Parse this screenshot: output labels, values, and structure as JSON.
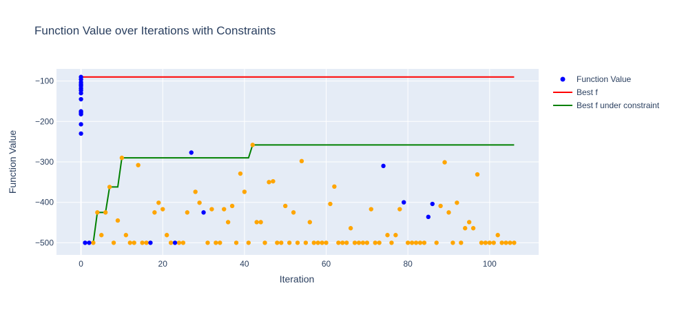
{
  "chart_data": {
    "type": "scatter",
    "title": "Function Value over Iterations with Constraints",
    "xlabel": "Iteration",
    "ylabel": "Function Value",
    "xlim": [
      -6,
      112
    ],
    "ylim": [
      -530,
      -70
    ],
    "x_ticks": [
      0,
      20,
      40,
      60,
      80,
      100
    ],
    "y_ticks": [
      -100,
      -200,
      -300,
      -400,
      -500
    ],
    "x_tick_labels": [
      "0",
      "20",
      "40",
      "60",
      "80",
      "100"
    ],
    "y_tick_labels": [
      "−100",
      "−200",
      "−300",
      "−400",
      "−500"
    ],
    "grid": true,
    "legend_position": "top-right",
    "colors": {
      "plot_bg": "#E5ECF6",
      "feasible_point": "#FFA500",
      "infeasible_point": "#0000FF",
      "best_f": "#FF0000",
      "best_f_constraint": "#008000"
    },
    "series": [
      {
        "name": "Function Value",
        "kind": "markers",
        "points_infeasible": [
          [
            0,
            -90
          ],
          [
            0,
            -96
          ],
          [
            0,
            -103
          ],
          [
            0,
            -108
          ],
          [
            0,
            -112
          ],
          [
            0,
            -118
          ],
          [
            0,
            -123
          ],
          [
            0,
            -130
          ],
          [
            0,
            -145
          ],
          [
            0,
            -175
          ],
          [
            0,
            -178
          ],
          [
            0,
            -182
          ],
          [
            0,
            -207
          ],
          [
            0,
            -230
          ],
          [
            1,
            -500
          ],
          [
            2,
            -500
          ],
          [
            17,
            -500
          ],
          [
            23,
            -500
          ],
          [
            27,
            -277
          ],
          [
            30,
            -425
          ],
          [
            74,
            -310
          ],
          [
            79,
            -400
          ],
          [
            85,
            -436
          ],
          [
            86,
            -404
          ]
        ],
        "points_feasible": [
          [
            3,
            -500
          ],
          [
            4,
            -425
          ],
          [
            5,
            -481
          ],
          [
            6,
            -425
          ],
          [
            7,
            -362
          ],
          [
            8,
            -500
          ],
          [
            9,
            -445
          ],
          [
            10,
            -290
          ],
          [
            11,
            -481
          ],
          [
            12,
            -500
          ],
          [
            13,
            -500
          ],
          [
            14,
            -308
          ],
          [
            15,
            -500
          ],
          [
            16,
            -500
          ],
          [
            18,
            -425
          ],
          [
            19,
            -401
          ],
          [
            20,
            -417
          ],
          [
            21,
            -481
          ],
          [
            22,
            -500
          ],
          [
            24,
            -500
          ],
          [
            25,
            -500
          ],
          [
            26,
            -425
          ],
          [
            28,
            -374
          ],
          [
            29,
            -401
          ],
          [
            31,
            -500
          ],
          [
            32,
            -417
          ],
          [
            33,
            -500
          ],
          [
            34,
            -500
          ],
          [
            35,
            -417
          ],
          [
            36,
            -449
          ],
          [
            37,
            -409
          ],
          [
            38,
            -500
          ],
          [
            39,
            -329
          ],
          [
            40,
            -374
          ],
          [
            41,
            -500
          ],
          [
            42,
            -258
          ],
          [
            43,
            -449
          ],
          [
            44,
            -449
          ],
          [
            45,
            -500
          ],
          [
            46,
            -350
          ],
          [
            47,
            -348
          ],
          [
            48,
            -500
          ],
          [
            49,
            -500
          ],
          [
            50,
            -409
          ],
          [
            51,
            -500
          ],
          [
            52,
            -425
          ],
          [
            53,
            -500
          ],
          [
            54,
            -298
          ],
          [
            55,
            -500
          ],
          [
            56,
            -449
          ],
          [
            57,
            -500
          ],
          [
            58,
            -500
          ],
          [
            59,
            -500
          ],
          [
            60,
            -500
          ],
          [
            61,
            -404
          ],
          [
            62,
            -361
          ],
          [
            63,
            -500
          ],
          [
            64,
            -500
          ],
          [
            65,
            -500
          ],
          [
            66,
            -464
          ],
          [
            67,
            -500
          ],
          [
            68,
            -500
          ],
          [
            69,
            -500
          ],
          [
            70,
            -500
          ],
          [
            71,
            -417
          ],
          [
            72,
            -500
          ],
          [
            73,
            -500
          ],
          [
            75,
            -481
          ],
          [
            76,
            -500
          ],
          [
            77,
            -481
          ],
          [
            78,
            -417
          ],
          [
            80,
            -500
          ],
          [
            81,
            -500
          ],
          [
            82,
            -500
          ],
          [
            83,
            -500
          ],
          [
            84,
            -500
          ],
          [
            87,
            -500
          ],
          [
            88,
            -409
          ],
          [
            89,
            -301
          ],
          [
            90,
            -425
          ],
          [
            91,
            -500
          ],
          [
            92,
            -401
          ],
          [
            93,
            -500
          ],
          [
            94,
            -464
          ],
          [
            95,
            -449
          ],
          [
            96,
            -464
          ],
          [
            97,
            -331
          ],
          [
            98,
            -500
          ],
          [
            99,
            -500
          ],
          [
            100,
            -500
          ],
          [
            101,
            -500
          ],
          [
            102,
            -481
          ],
          [
            103,
            -500
          ],
          [
            104,
            -500
          ],
          [
            105,
            -500
          ],
          [
            106,
            -500
          ]
        ]
      },
      {
        "name": "Best f",
        "kind": "line",
        "x": [
          0,
          106
        ],
        "y": [
          -90,
          -90
        ]
      },
      {
        "name": "Best f under constraint",
        "kind": "line",
        "x": [
          3,
          4,
          6,
          7,
          9,
          10,
          41,
          42,
          106
        ],
        "y": [
          -500,
          -425,
          -425,
          -362,
          -362,
          -290,
          -290,
          -258,
          -258
        ]
      }
    ]
  }
}
